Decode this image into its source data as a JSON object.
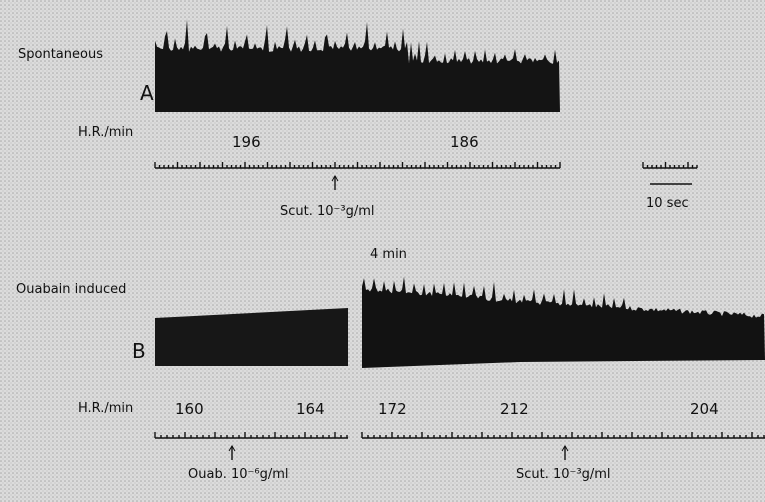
{
  "panel_a": {
    "condition": "Spontaneous",
    "label": "A",
    "hr_label": "H.R./min",
    "heart_rates": [
      196,
      186
    ],
    "drug": "Scut. 10⁻³g/ml"
  },
  "scale_bar": "10 sec",
  "panel_b": {
    "condition": "Ouabain induced",
    "label": "B",
    "gap_label": "4 min",
    "hr_label": "H.R./min",
    "heart_rates": [
      160,
      164,
      172,
      212,
      204
    ],
    "drugs": [
      "Ouab. 10⁻⁶g/ml",
      "Scut. 10⁻³g/ml"
    ]
  }
}
